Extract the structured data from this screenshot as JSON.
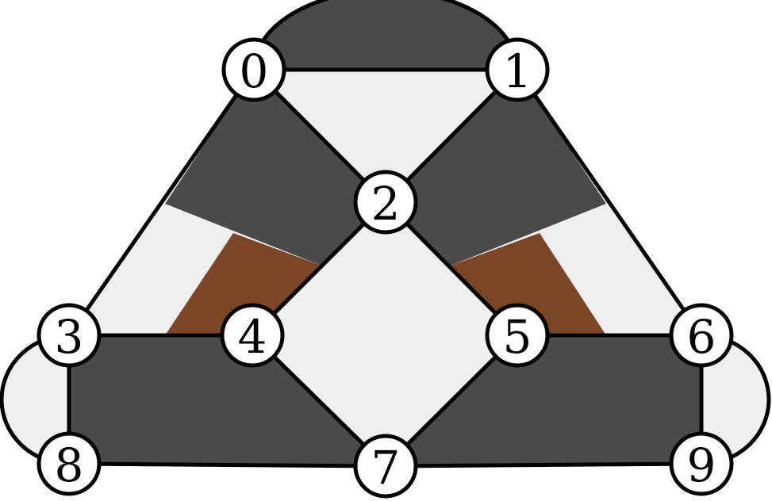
{
  "colors": {
    "dark": "#4a4a4a",
    "light": "#efefef",
    "brown": "#7b4626",
    "edge": "#000000",
    "node_fill": "#ffffff"
  },
  "nodes": [
    {
      "id": "0",
      "label": "0"
    },
    {
      "id": "1",
      "label": "1"
    },
    {
      "id": "2",
      "label": "2"
    },
    {
      "id": "3",
      "label": "3"
    },
    {
      "id": "4",
      "label": "4"
    },
    {
      "id": "5",
      "label": "5"
    },
    {
      "id": "6",
      "label": "6"
    },
    {
      "id": "7",
      "label": "7"
    },
    {
      "id": "8",
      "label": "8"
    },
    {
      "id": "9",
      "label": "9"
    }
  ],
  "edges": [
    {
      "from": "0",
      "to": "1",
      "kind": "straight"
    },
    {
      "from": "0",
      "to": "1",
      "kind": "arc"
    },
    {
      "from": "0",
      "to": "2",
      "kind": "straight"
    },
    {
      "from": "1",
      "to": "2",
      "kind": "straight"
    },
    {
      "from": "0",
      "to": "3",
      "kind": "straight"
    },
    {
      "from": "1",
      "to": "6",
      "kind": "straight"
    },
    {
      "from": "2",
      "to": "4",
      "kind": "straight"
    },
    {
      "from": "2",
      "to": "5",
      "kind": "straight"
    },
    {
      "from": "3",
      "to": "4",
      "kind": "straight"
    },
    {
      "from": "5",
      "to": "6",
      "kind": "straight"
    },
    {
      "from": "3",
      "to": "8",
      "kind": "straight"
    },
    {
      "from": "3",
      "to": "8",
      "kind": "arc"
    },
    {
      "from": "6",
      "to": "9",
      "kind": "straight"
    },
    {
      "from": "6",
      "to": "9",
      "kind": "arc"
    },
    {
      "from": "4",
      "to": "7",
      "kind": "straight"
    },
    {
      "from": "5",
      "to": "7",
      "kind": "straight"
    },
    {
      "from": "8",
      "to": "7",
      "kind": "straight"
    },
    {
      "from": "7",
      "to": "9",
      "kind": "straight"
    }
  ]
}
